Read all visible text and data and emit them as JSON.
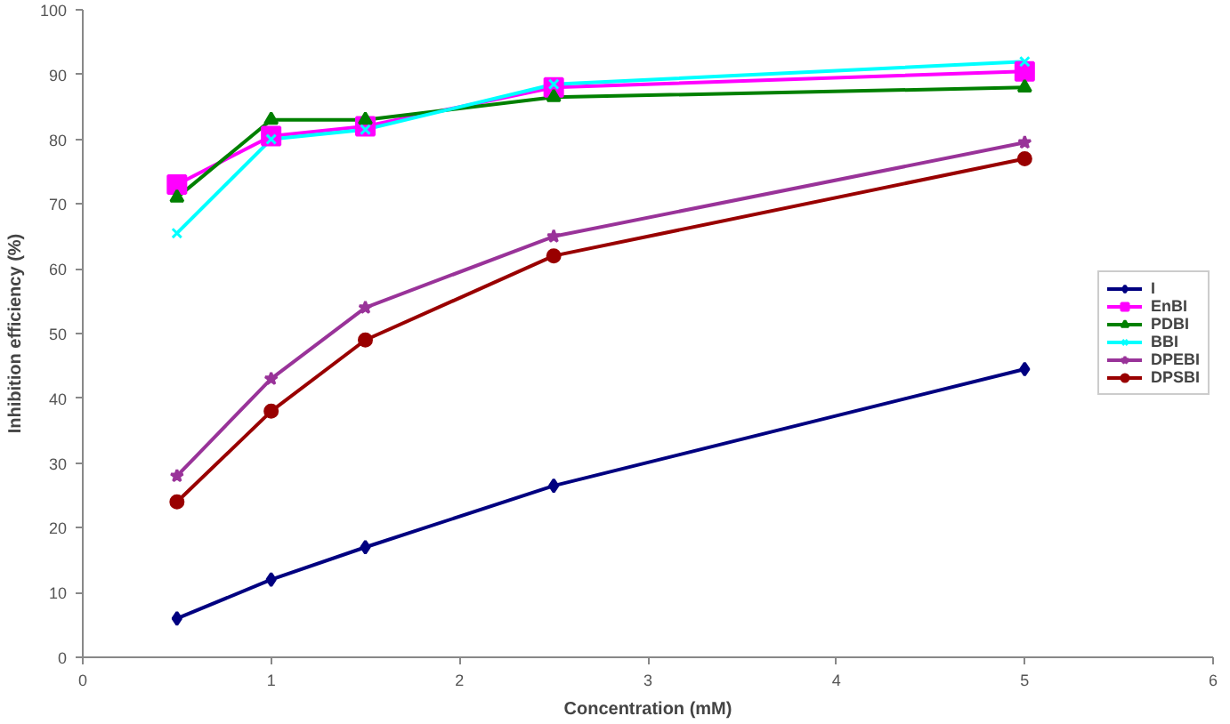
{
  "chart_data": {
    "type": "line",
    "xlabel": "Concentration (mM)",
    "ylabel": "Inhibition efficiency (%)",
    "x": [
      0.5,
      1,
      1.5,
      2.5,
      5
    ],
    "series": [
      {
        "name": "I",
        "color": "#000080",
        "marker": "diamond",
        "values": [
          6,
          12,
          17,
          26.5,
          44.5
        ]
      },
      {
        "name": "EnBI",
        "color": "#ff00ff",
        "marker": "square",
        "values": [
          73,
          80.5,
          82,
          88,
          90.5
        ]
      },
      {
        "name": "PDBI",
        "color": "#008000",
        "marker": "triangle",
        "values": [
          71,
          83,
          83,
          86.5,
          88
        ]
      },
      {
        "name": "BBI",
        "color": "#00ffff",
        "marker": "cross",
        "values": [
          65.5,
          80,
          81.5,
          88.5,
          92
        ]
      },
      {
        "name": "DPEBI",
        "color": "#993399",
        "marker": "star",
        "values": [
          28,
          43,
          54,
          65,
          79.5
        ]
      },
      {
        "name": "DPSBI",
        "color": "#990000",
        "marker": "circle",
        "values": [
          24,
          38,
          49,
          62,
          77
        ]
      }
    ],
    "xlim": [
      0,
      6
    ],
    "xticks": [
      0,
      1,
      2,
      3,
      4,
      5,
      6
    ],
    "ylim": [
      0,
      100
    ],
    "yticks": [
      0,
      10,
      20,
      30,
      40,
      50,
      60,
      70,
      80,
      90,
      100
    ],
    "grid": false,
    "legend": "right",
    "line_style": "solid"
  }
}
